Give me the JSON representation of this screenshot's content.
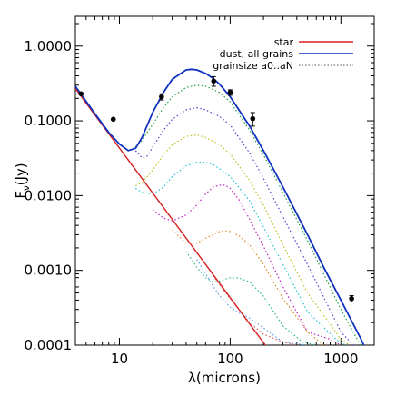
{
  "chart_data": {
    "type": "line",
    "title": "",
    "xlabel": "λ(microns)",
    "ylabel_main": "F",
    "ylabel_sub": "ν",
    "ylabel_rest": "(Jy)",
    "x_scale": "log",
    "y_scale": "log",
    "xlim": [
      4,
      2000
    ],
    "ylim": [
      0.0001,
      2.5
    ],
    "x_ticks": [
      {
        "value": 10,
        "label": "10"
      },
      {
        "value": 100,
        "label": "100"
      },
      {
        "value": 1000,
        "label": "1000"
      }
    ],
    "y_ticks": [
      {
        "value": 0.0001,
        "label": "0.0001"
      },
      {
        "value": 0.001,
        "label": "0.0010"
      },
      {
        "value": 0.01,
        "label": "0.0100"
      },
      {
        "value": 0.1,
        "label": "0.1000"
      },
      {
        "value": 1,
        "label": "1.0000"
      }
    ],
    "legend_position": "top-right",
    "legend": [
      {
        "label": "star",
        "color": "#d62020",
        "style": "solid"
      },
      {
        "label": "dust, all grains",
        "color": "#1030c0",
        "style": "solid"
      },
      {
        "label": "grainsize a0..aN",
        "color": "#707070",
        "style": "dotted"
      }
    ],
    "series": [
      {
        "name": "star",
        "color": "#d62020",
        "style": "solid",
        "x": [
          4,
          10,
          20,
          50,
          100,
          200,
          220
        ],
        "y": [
          0.27,
          0.0432,
          0.0108,
          0.001728,
          0.000432,
          0.000108,
          8.93e-05
        ]
      },
      {
        "name": "dust, all grains",
        "color": "#1030c0",
        "style": "solid",
        "x": [
          4,
          6,
          8,
          10,
          12,
          14,
          16,
          18,
          20,
          25,
          30,
          40,
          45,
          50,
          60,
          70,
          80,
          100,
          150,
          200,
          300,
          500,
          700,
          1000,
          1500,
          2000
        ],
        "y": [
          0.29,
          0.125,
          0.07,
          0.049,
          0.04,
          0.043,
          0.06,
          0.09,
          0.13,
          0.24,
          0.36,
          0.48,
          0.49,
          0.48,
          0.43,
          0.37,
          0.31,
          0.21,
          0.085,
          0.04,
          0.013,
          0.003,
          0.0011,
          0.0004,
          0.000125,
          5e-05
        ]
      },
      {
        "name": "grain 1",
        "color": "#20a040",
        "style": "dotted",
        "x": [
          14,
          16,
          20,
          25,
          30,
          40,
          50,
          60,
          80,
          100,
          150,
          200,
          300,
          500,
          1000,
          1500
        ],
        "y": [
          0.045,
          0.055,
          0.09,
          0.15,
          0.21,
          0.28,
          0.3,
          0.29,
          0.24,
          0.18,
          0.075,
          0.035,
          0.011,
          0.0025,
          0.0003,
          0.0001
        ]
      },
      {
        "name": "grain 2",
        "color": "#5040d0",
        "style": "dotted",
        "x": [
          14,
          16,
          18,
          20,
          25,
          30,
          40,
          50,
          60,
          80,
          100,
          150,
          200,
          300,
          500,
          1000,
          1300
        ],
        "y": [
          0.04,
          0.032,
          0.034,
          0.045,
          0.075,
          0.105,
          0.14,
          0.15,
          0.14,
          0.115,
          0.088,
          0.037,
          0.017,
          0.0052,
          0.0012,
          0.00015,
          0.0001
        ]
      },
      {
        "name": "grain 3",
        "color": "#c0c020",
        "style": "dotted",
        "x": [
          14,
          16,
          20,
          25,
          30,
          40,
          50,
          60,
          80,
          100,
          150,
          200,
          300,
          500,
          1000,
          1200
        ],
        "y": [
          0.0135,
          0.015,
          0.022,
          0.035,
          0.048,
          0.062,
          0.065,
          0.06,
          0.048,
          0.036,
          0.016,
          0.0075,
          0.0022,
          0.0005,
          0.00012,
          0.0001
        ]
      },
      {
        "name": "grain 4",
        "color": "#20c0d0",
        "style": "dotted",
        "x": [
          14,
          16,
          20,
          25,
          30,
          40,
          50,
          60,
          70,
          80,
          100,
          150,
          200,
          300,
          500,
          900,
          1100
        ],
        "y": [
          0.0125,
          0.011,
          0.0105,
          0.013,
          0.018,
          0.025,
          0.028,
          0.028,
          0.026,
          0.023,
          0.018,
          0.0085,
          0.0038,
          0.0012,
          0.00028,
          0.00012,
          0.0001
        ]
      },
      {
        "name": "grain 5",
        "color": "#c020c0",
        "style": "dotted",
        "x": [
          20,
          25,
          30,
          40,
          50,
          60,
          70,
          80,
          90,
          100,
          120,
          150,
          200,
          300,
          500,
          800,
          1000
        ],
        "y": [
          0.0065,
          0.005,
          0.0046,
          0.0055,
          0.0075,
          0.0105,
          0.013,
          0.0138,
          0.0138,
          0.0125,
          0.0088,
          0.0048,
          0.0021,
          0.0006,
          0.00015,
          0.00012,
          0.0001
        ]
      },
      {
        "name": "grain 6",
        "color": "#e08a20",
        "style": "dotted",
        "x": [
          30,
          40,
          50,
          60,
          70,
          80,
          90,
          100,
          120,
          150,
          200,
          300,
          500,
          700
        ],
        "y": [
          0.0035,
          0.0023,
          0.0023,
          0.0027,
          0.003,
          0.0033,
          0.0034,
          0.0033,
          0.0029,
          0.0022,
          0.0012,
          0.00042,
          0.00015,
          0.0001
        ]
      },
      {
        "name": "grain 7",
        "color": "#30c080",
        "style": "dotted",
        "x": [
          40,
          50,
          60,
          70,
          80,
          100,
          120,
          150,
          200,
          300,
          450,
          600
        ],
        "y": [
          0.0018,
          0.0011,
          0.0008,
          0.0007,
          0.00072,
          0.0008,
          0.00079,
          0.0007,
          0.00045,
          0.00018,
          0.00011,
          0.0001
        ]
      },
      {
        "name": "grain 8",
        "color": "#60a0e0",
        "style": "dotted",
        "x": [
          50,
          60,
          70,
          80,
          100,
          120,
          150,
          200,
          300,
          500
        ],
        "y": [
          0.0014,
          0.0009,
          0.00062,
          0.00046,
          0.00032,
          0.00027,
          0.00023,
          0.00017,
          0.00011,
          0.0001
        ]
      },
      {
        "name": "grain 9",
        "color": "#d06060",
        "style": "dotted",
        "x": [
          70,
          80,
          100,
          120,
          150,
          200,
          300,
          400
        ],
        "y": [
          0.00085,
          0.00065,
          0.00042,
          0.0003,
          0.0002,
          0.00014,
          0.00011,
          0.0001
        ]
      }
    ],
    "observations": {
      "x": [
        4.5,
        8.8,
        24,
        71,
        100,
        160,
        1250
      ],
      "y": [
        0.23,
        0.105,
        0.21,
        0.34,
        0.24,
        0.107,
        0.00042
      ],
      "yerr": [
        0,
        0,
        0.02,
        0.05,
        0.02,
        0.022,
        4e-05
      ]
    }
  }
}
